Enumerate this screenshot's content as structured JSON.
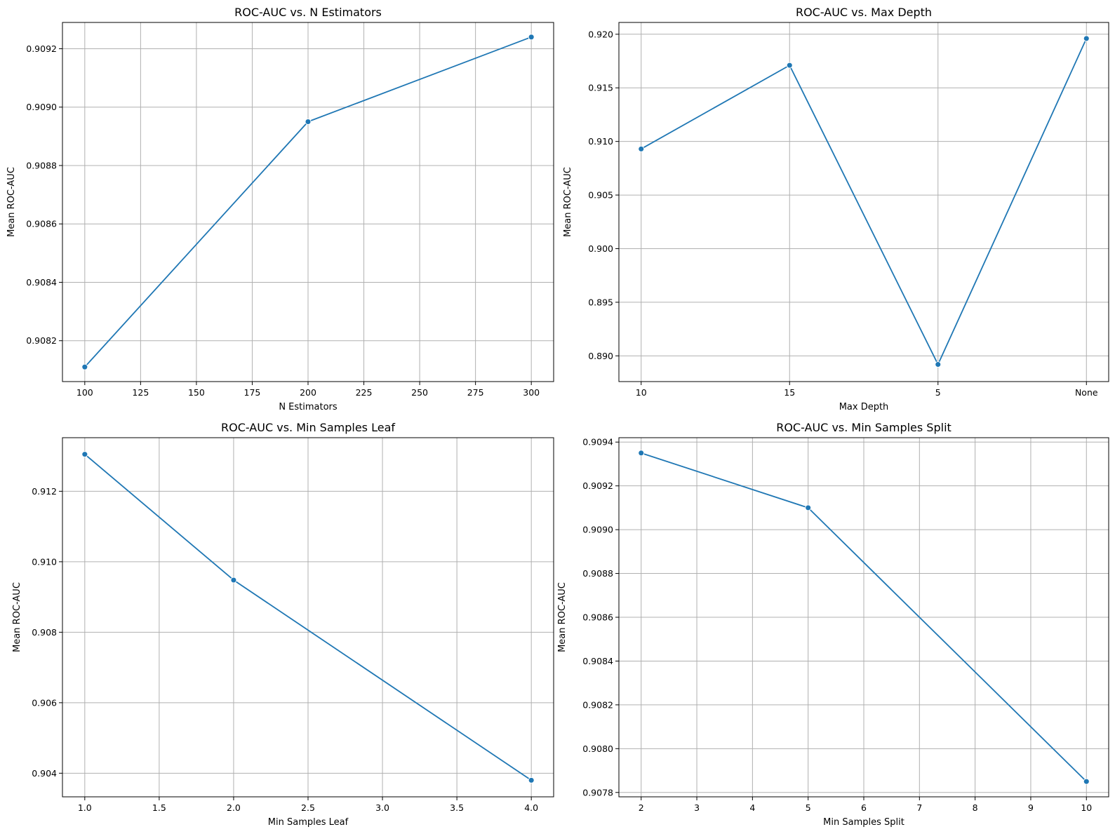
{
  "colors": {
    "line": "#1f77b4",
    "grid": "#b0b0b0",
    "frame": "#000000"
  },
  "chart_data": [
    {
      "type": "line",
      "title": "ROC-AUC vs. N Estimators",
      "xlabel": "N Estimators",
      "ylabel": "Mean ROC-AUC",
      "x": [
        100,
        200,
        300
      ],
      "values": [
        0.90811,
        0.90895,
        0.90924
      ],
      "xlim": [
        90,
        310
      ],
      "ylim": [
        0.90806,
        0.90929
      ],
      "xticks": [
        100,
        125,
        150,
        175,
        200,
        225,
        250,
        275,
        300
      ],
      "xtick_labels": [
        "100",
        "125",
        "150",
        "175",
        "200",
        "225",
        "250",
        "275",
        "300"
      ],
      "yticks": [
        0.9082,
        0.9084,
        0.9086,
        0.9088,
        0.909,
        0.9092
      ],
      "ytick_labels": [
        "0.9082",
        "0.9084",
        "0.9086",
        "0.9088",
        "0.9090",
        "0.9092"
      ],
      "grid": true,
      "markers": true
    },
    {
      "type": "line",
      "title": "ROC-AUC vs. Max Depth",
      "xlabel": "Max Depth",
      "ylabel": "Mean ROC-AUC",
      "categories": [
        "10",
        "15",
        "5",
        "None"
      ],
      "values": [
        0.9093,
        0.9171,
        0.8892,
        0.9196
      ],
      "ylim": [
        0.8876,
        0.9211
      ],
      "yticks": [
        0.89,
        0.895,
        0.9,
        0.905,
        0.91,
        0.915,
        0.92
      ],
      "ytick_labels": [
        "0.890",
        "0.895",
        "0.900",
        "0.905",
        "0.910",
        "0.915",
        "0.920"
      ],
      "grid": true,
      "markers": true
    },
    {
      "type": "line",
      "title": "ROC-AUC vs. Min Samples Leaf",
      "xlabel": "Min Samples Leaf",
      "ylabel": "Mean ROC-AUC",
      "x": [
        1,
        2,
        4
      ],
      "values": [
        0.91305,
        0.90948,
        0.9038
      ],
      "xlim": [
        0.85,
        4.15
      ],
      "ylim": [
        0.90333,
        0.91352
      ],
      "xticks": [
        1.0,
        1.5,
        2.0,
        2.5,
        3.0,
        3.5,
        4.0
      ],
      "xtick_labels": [
        "1.0",
        "1.5",
        "2.0",
        "2.5",
        "3.0",
        "3.5",
        "4.0"
      ],
      "yticks": [
        0.904,
        0.906,
        0.908,
        0.91,
        0.912
      ],
      "ytick_labels": [
        "0.904",
        "0.906",
        "0.908",
        "0.910",
        "0.912"
      ],
      "grid": true,
      "markers": true
    },
    {
      "type": "line",
      "title": "ROC-AUC vs. Min Samples Split",
      "xlabel": "Min Samples Split",
      "ylabel": "Mean ROC-AUC",
      "x": [
        2,
        5,
        10
      ],
      "values": [
        0.90935,
        0.9091,
        0.90785
      ],
      "xlim": [
        1.6,
        10.4
      ],
      "ylim": [
        0.90778,
        0.90942
      ],
      "xticks": [
        2,
        3,
        4,
        5,
        6,
        7,
        8,
        9,
        10
      ],
      "xtick_labels": [
        "2",
        "3",
        "4",
        "5",
        "6",
        "7",
        "8",
        "9",
        "10"
      ],
      "yticks": [
        0.9078,
        0.908,
        0.9082,
        0.9084,
        0.9086,
        0.9088,
        0.909,
        0.9092,
        0.9094
      ],
      "ytick_labels": [
        "0.9078",
        "0.9080",
        "0.9082",
        "0.9084",
        "0.9086",
        "0.9088",
        "0.9090",
        "0.9092",
        "0.9094"
      ],
      "grid": true,
      "markers": true
    }
  ]
}
